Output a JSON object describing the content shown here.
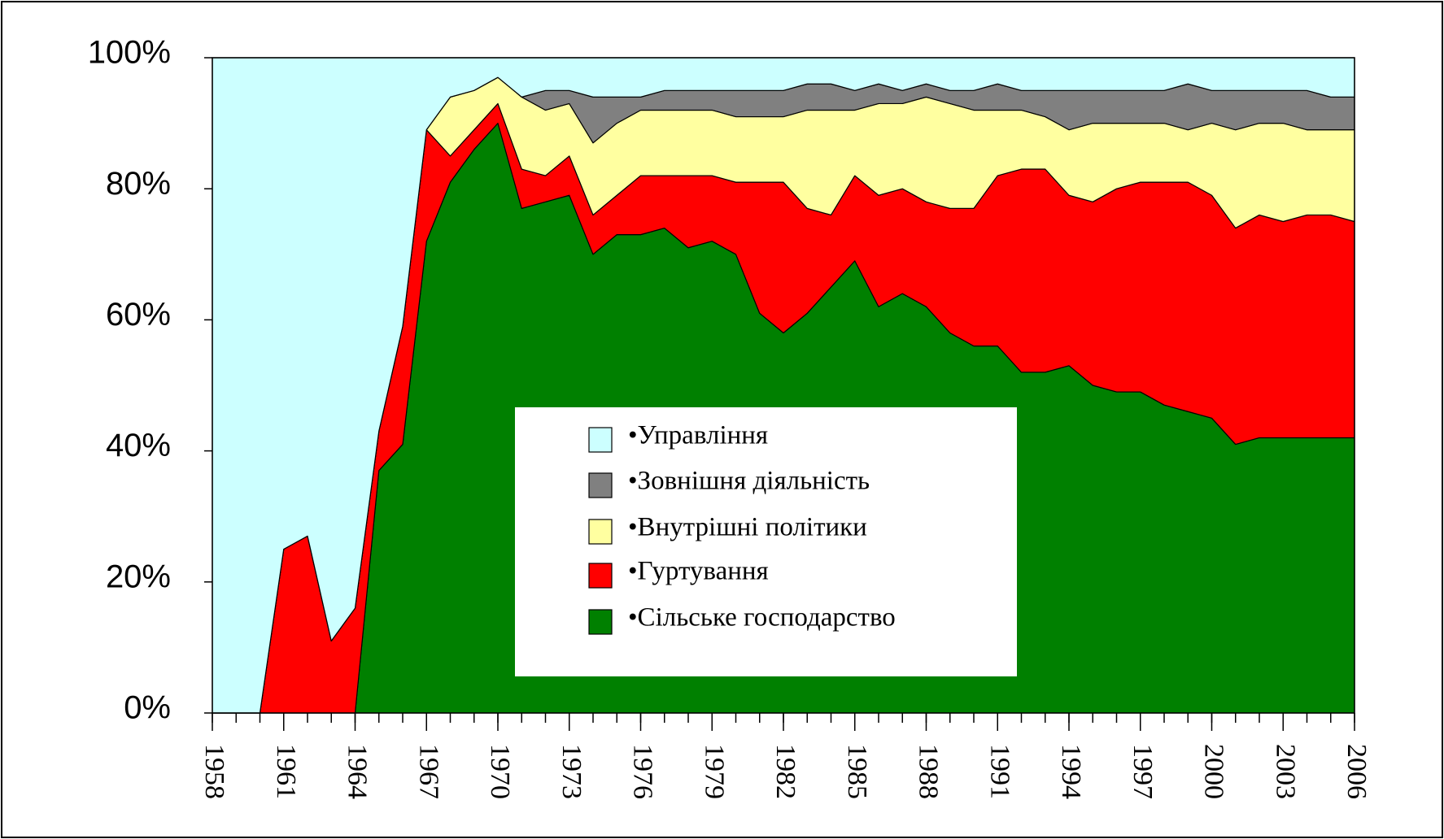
{
  "chart_data": {
    "type": "stacked_area",
    "x": [
      1958,
      1959,
      1960,
      1961,
      1962,
      1963,
      1964,
      1965,
      1966,
      1967,
      1968,
      1969,
      1970,
      1971,
      1972,
      1973,
      1974,
      1975,
      1976,
      1977,
      1978,
      1979,
      1980,
      1981,
      1982,
      1983,
      1984,
      1985,
      1986,
      1987,
      1988,
      1989,
      1990,
      1991,
      1992,
      1993,
      1994,
      1995,
      1996,
      1997,
      1998,
      1999,
      2000,
      2001,
      2002,
      2003,
      2004,
      2005,
      2006
    ],
    "xlim": [
      1958,
      2006
    ],
    "xticks": [
      1958,
      1961,
      1964,
      1967,
      1970,
      1973,
      1976,
      1979,
      1982,
      1985,
      1988,
      1991,
      1994,
      1997,
      2000,
      2003,
      2006
    ],
    "ylim": [
      0,
      100
    ],
    "yticks": [
      {
        "value": 0,
        "label": "0%"
      },
      {
        "value": 20,
        "label": "20%"
      },
      {
        "value": 40,
        "label": "40%"
      },
      {
        "value": 60,
        "label": "60%"
      },
      {
        "value": 80,
        "label": "80%"
      },
      {
        "value": 100,
        "label": "100%"
      }
    ],
    "series": [
      {
        "name": "•Сільське господарство",
        "color": "#008000",
        "values": [
          0,
          0,
          0,
          0,
          0,
          0,
          0,
          37,
          41,
          72,
          81,
          86,
          90,
          77,
          78,
          79,
          70,
          73,
          73,
          74,
          71,
          72,
          70,
          61,
          58,
          61,
          65,
          69,
          62,
          64,
          62,
          58,
          56,
          56,
          52,
          52,
          53,
          50,
          49,
          49,
          47,
          46,
          45,
          41,
          42,
          42,
          42,
          42,
          42
        ]
      },
      {
        "name": "•Гуртування",
        "color": "#ff0000",
        "values": [
          0,
          0,
          0,
          25,
          27,
          11,
          16,
          6,
          18,
          17,
          4,
          3,
          3,
          6,
          4,
          6,
          6,
          6,
          9,
          8,
          11,
          10,
          11,
          20,
          23,
          16,
          11,
          13,
          17,
          16,
          16,
          19,
          21,
          26,
          31,
          31,
          26,
          28,
          31,
          32,
          34,
          35,
          34,
          33,
          34,
          33,
          34,
          34,
          33
        ]
      },
      {
        "name": "•Внутрішні політики",
        "color": "#ffffa0",
        "values": [
          0,
          0,
          0,
          0,
          0,
          0,
          0,
          0,
          0,
          0,
          9,
          6,
          4,
          11,
          10,
          8,
          11,
          11,
          10,
          10,
          10,
          10,
          10,
          10,
          10,
          15,
          16,
          10,
          14,
          13,
          16,
          16,
          15,
          10,
          9,
          8,
          10,
          12,
          10,
          9,
          9,
          8,
          11,
          15,
          14,
          15,
          13,
          13,
          14
        ]
      },
      {
        "name": "•Зовнішня діяльність",
        "color": "#808080",
        "values": [
          0,
          0,
          0,
          0,
          0,
          0,
          0,
          0,
          0,
          0,
          0,
          0,
          0,
          0,
          3,
          2,
          7,
          4,
          2,
          3,
          3,
          3,
          4,
          4,
          4,
          4,
          4,
          3,
          3,
          2,
          2,
          2,
          3,
          4,
          3,
          4,
          6,
          5,
          5,
          5,
          5,
          7,
          5,
          6,
          5,
          5,
          6,
          5,
          5
        ]
      },
      {
        "name": "•Управління",
        "color": "#ccffff",
        "values": [
          100,
          100,
          100,
          75,
          73,
          89,
          84,
          57,
          41,
          11,
          6,
          5,
          3,
          6,
          5,
          5,
          6,
          6,
          6,
          5,
          5,
          5,
          5,
          5,
          5,
          4,
          4,
          5,
          4,
          5,
          4,
          5,
          5,
          4,
          5,
          5,
          5,
          5,
          5,
          5,
          5,
          4,
          5,
          5,
          5,
          5,
          5,
          6,
          6
        ]
      }
    ]
  }
}
